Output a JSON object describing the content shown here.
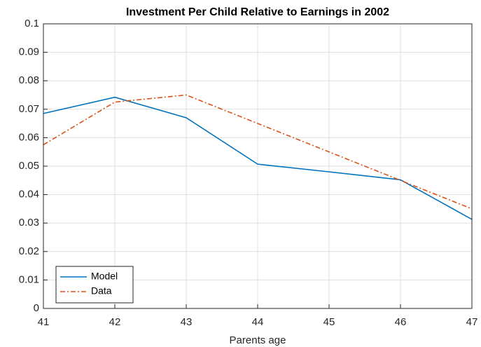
{
  "chart_data": {
    "type": "line",
    "title": "Investment Per Child Relative to Earnings in 2002",
    "x_label": "Parents age",
    "x": [
      41,
      42,
      43,
      44,
      45,
      46,
      47
    ],
    "series": [
      {
        "name": "Model",
        "color": "#0072bd",
        "style": "solid",
        "values": [
          0.0685,
          0.0742,
          0.067,
          0.0507,
          0.048,
          0.0452,
          0.0313
        ]
      },
      {
        "name": "Data",
        "color": "#d95319",
        "style": "dashdot",
        "values": [
          0.0575,
          0.0725,
          0.075,
          0.065,
          0.055,
          0.045,
          0.035
        ]
      }
    ],
    "xlim": [
      41,
      47
    ],
    "xticks": [
      41,
      42,
      43,
      44,
      45,
      46,
      47
    ],
    "ylim": [
      0,
      0.1
    ],
    "yticks": [
      0,
      0.01,
      0.02,
      0.03,
      0.04,
      0.05,
      0.06,
      0.07,
      0.08,
      0.09,
      0.1
    ],
    "grid": true,
    "legend": "lower left"
  }
}
